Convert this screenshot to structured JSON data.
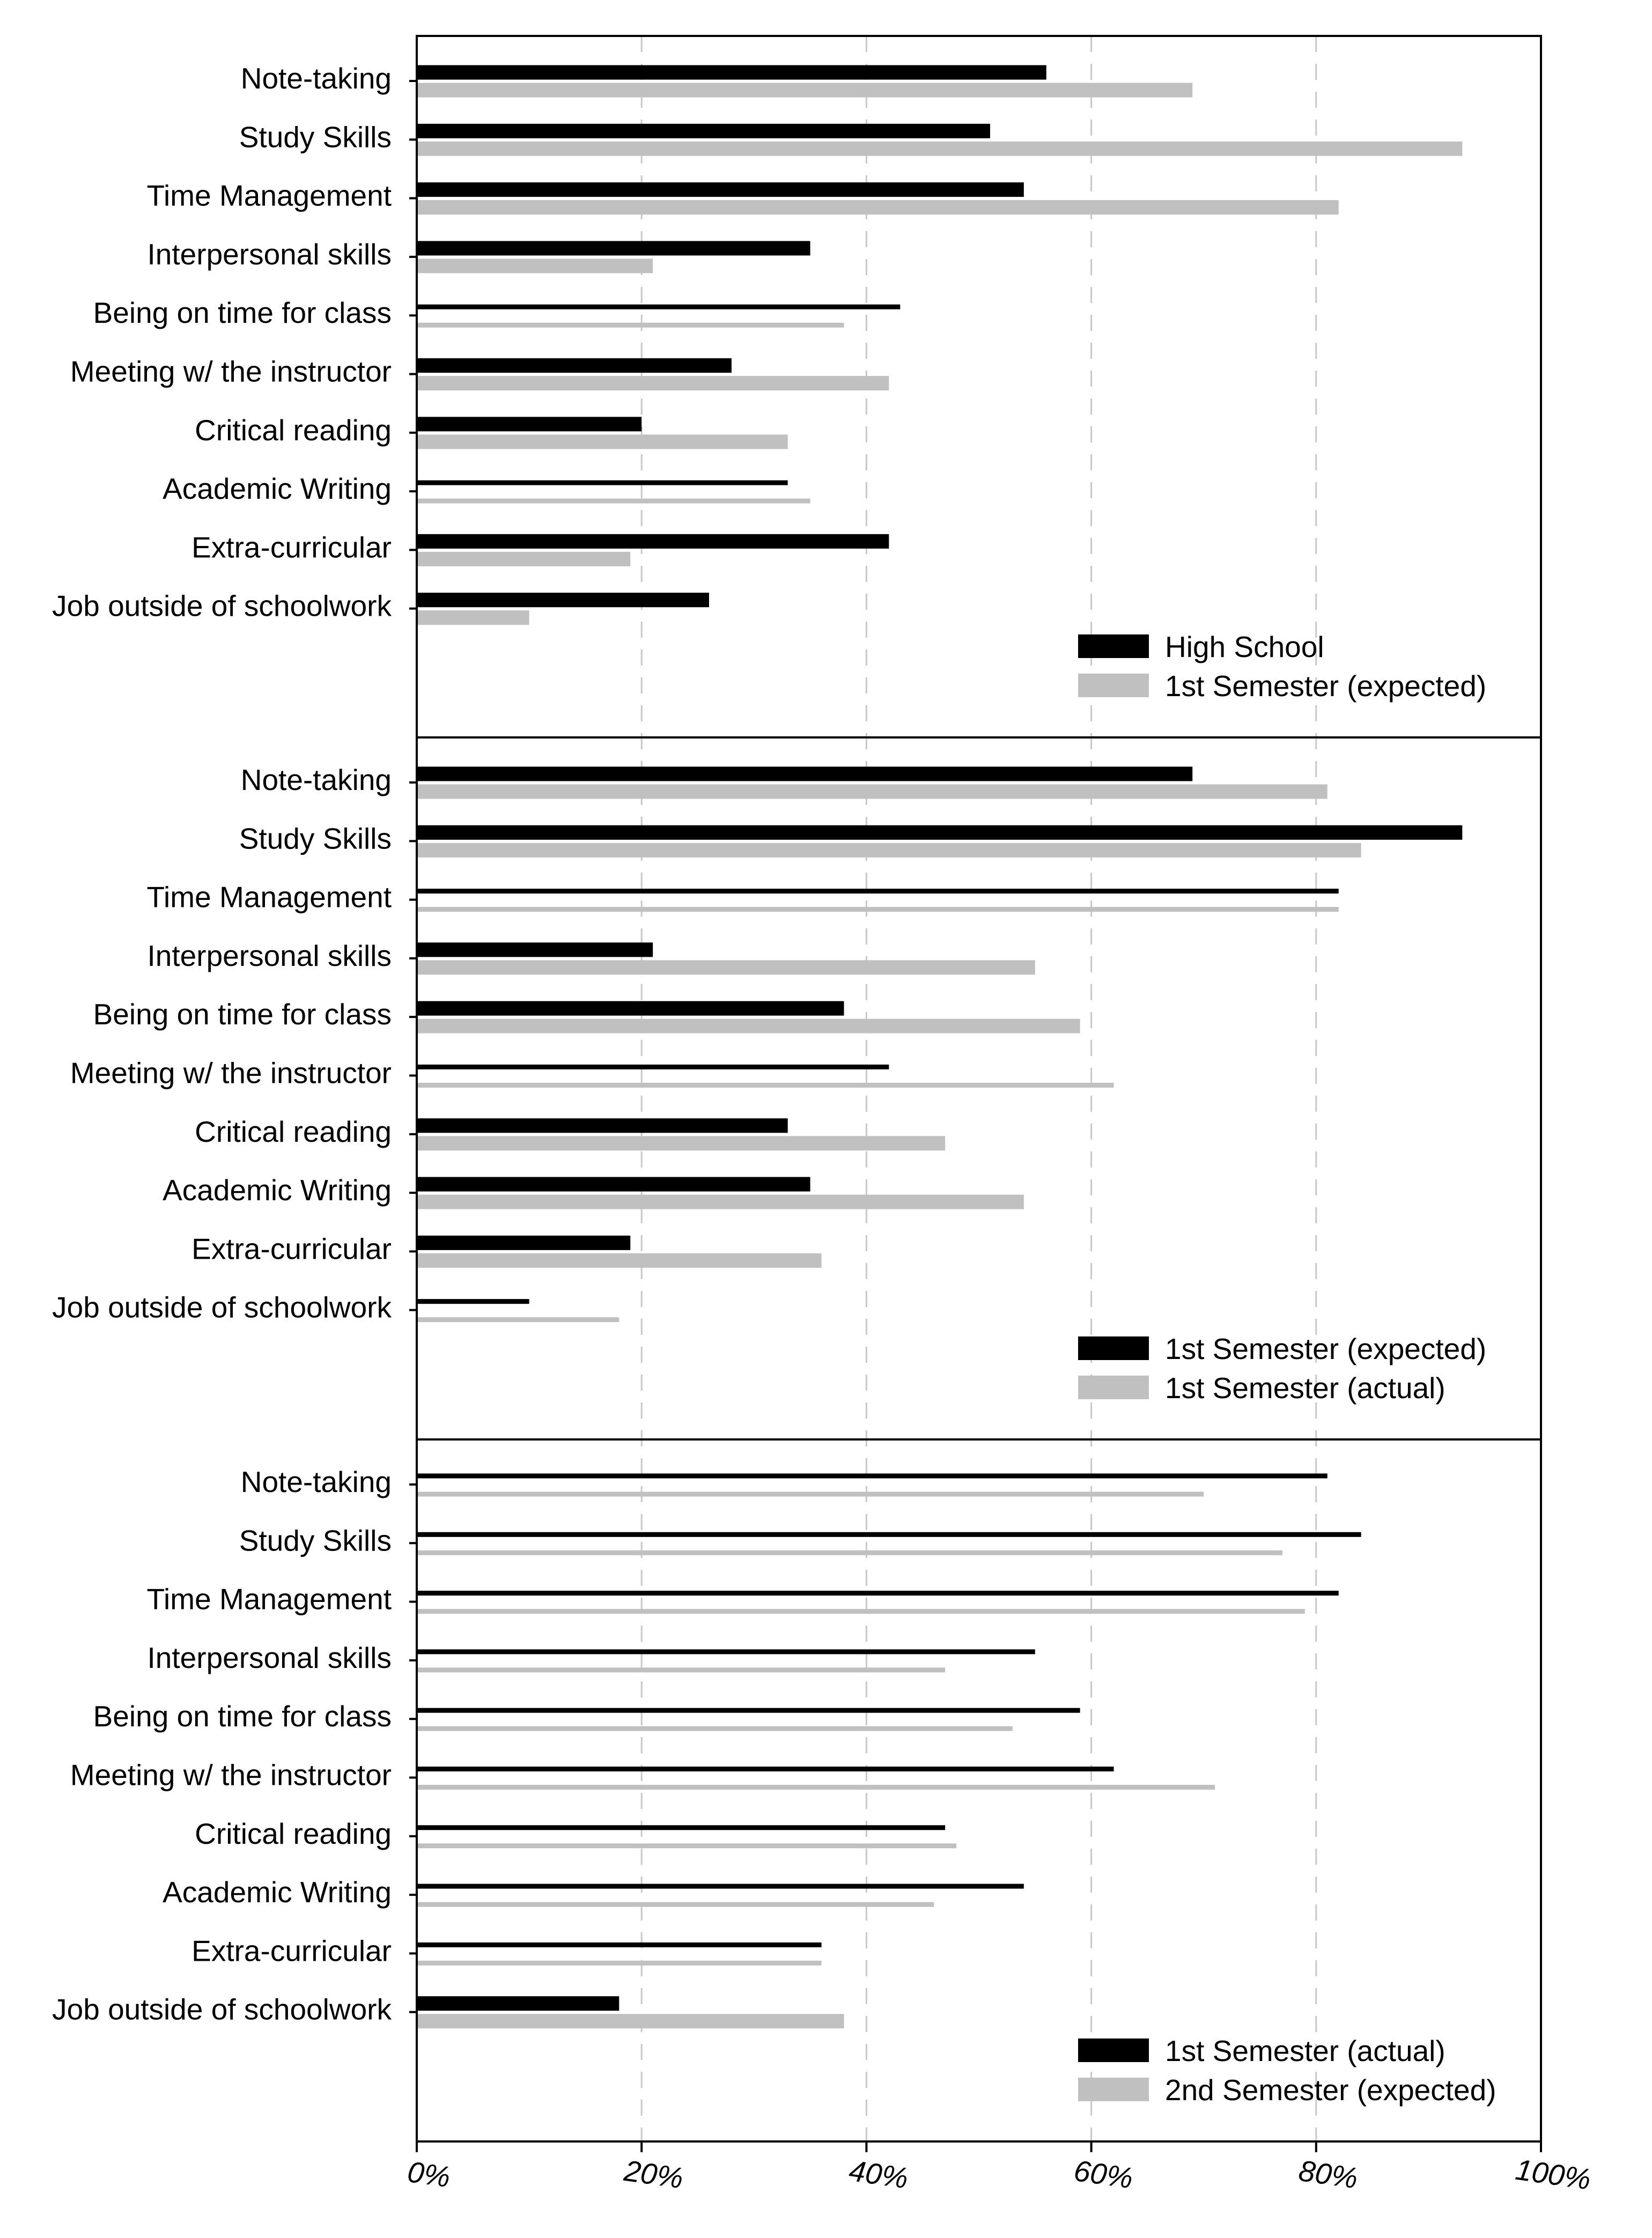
{
  "chart_data": {
    "type": "bar",
    "orientation": "horizontal",
    "colors": {
      "series1": "#000000",
      "series2": "#c0c0c0",
      "grid": "#c8c8c8",
      "frame": "#000000",
      "text": "#000000"
    },
    "x_axis": {
      "range": [
        0,
        100
      ],
      "ticks": [
        0,
        20,
        40,
        60,
        80,
        100
      ],
      "tick_labels": [
        "0%",
        "20%",
        "40%",
        "60%",
        "80%",
        "100%"
      ],
      "gridlines": "dashed",
      "label_style": "italic"
    },
    "categories": [
      "Note-taking",
      "Study Skills",
      "Time Management",
      "Interpersonal skills",
      "Being on time for class",
      "Meeting w/ the instructor",
      "Critical reading",
      "Academic Writing",
      "Extra-curricular",
      "Job outside of schoolwork"
    ],
    "panels": [
      {
        "id": "top",
        "legend_position": "bottom-right",
        "series": [
          {
            "name": "High School",
            "values": [
              56,
              51,
              54,
              35,
              43,
              28,
              20,
              33,
              42,
              26
            ],
            "bar_style": [
              "thick",
              "thick",
              "thick",
              "thick",
              "thin",
              "thick",
              "thick",
              "thin",
              "thick",
              "thick"
            ]
          },
          {
            "name": "1st Semester (expected)",
            "values": [
              69,
              93,
              82,
              21,
              38,
              42,
              33,
              35,
              19,
              10
            ],
            "bar_style": [
              "thick",
              "thick",
              "thick",
              "thick",
              "thin",
              "thick",
              "thick",
              "thin",
              "thick",
              "thick"
            ]
          }
        ]
      },
      {
        "id": "middle",
        "legend_position": "bottom-right",
        "series": [
          {
            "name": "1st Semester (expected)",
            "values": [
              69,
              93,
              82,
              21,
              38,
              42,
              33,
              35,
              19,
              10
            ],
            "bar_style": [
              "thick",
              "thick",
              "thin",
              "thick",
              "thick",
              "thin",
              "thick",
              "thick",
              "thick",
              "thin"
            ]
          },
          {
            "name": "1st Semester (actual)",
            "values": [
              81,
              84,
              82,
              55,
              59,
              62,
              47,
              54,
              36,
              18
            ],
            "bar_style": [
              "thick",
              "thick",
              "thin",
              "thick",
              "thick",
              "thin",
              "thick",
              "thick",
              "thick",
              "thin"
            ]
          }
        ]
      },
      {
        "id": "bottom",
        "legend_position": "bottom-right",
        "series": [
          {
            "name": "1st Semester (actual)",
            "values": [
              81,
              84,
              82,
              55,
              59,
              62,
              47,
              54,
              36,
              18
            ],
            "bar_style": [
              "thin",
              "thin",
              "thin",
              "thin",
              "thin",
              "thin",
              "thin",
              "thin",
              "thin",
              "thick"
            ]
          },
          {
            "name": "2nd Semester (expected)",
            "values": [
              70,
              77,
              79,
              47,
              53,
              71,
              48,
              46,
              36,
              38
            ],
            "bar_style": [
              "thin",
              "thin",
              "thin",
              "thin",
              "thin",
              "thin",
              "thin",
              "thin",
              "thin",
              "thick"
            ]
          }
        ]
      }
    ]
  }
}
